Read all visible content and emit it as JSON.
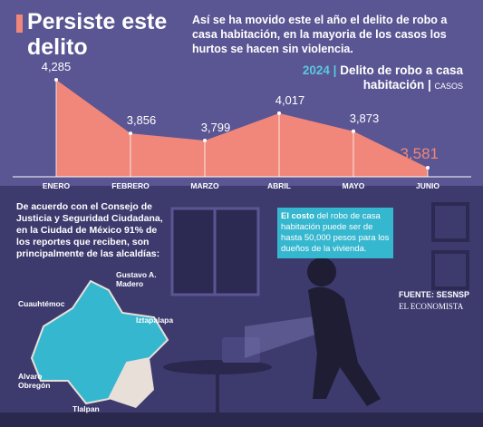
{
  "header": {
    "title": "Persiste este delito",
    "intro": "Así se ha movido este el año el delito de robo a casa habitación, en la mayoria de los casos los hurtos se hacen sin violencia."
  },
  "chart_data": {
    "type": "area",
    "title_year": "2024",
    "title": "Delito de robo a casa habitación",
    "title_unit": "CASOS",
    "categories": [
      "ENERO",
      "FEBRERO",
      "MARZO",
      "ABRIL",
      "MAYO",
      "JUNIO"
    ],
    "values": [
      4285,
      3856,
      3799,
      4017,
      3873,
      3581
    ],
    "value_labels": [
      "4,285",
      "3,856",
      "3,799",
      "4,017",
      "3,873",
      "3,581"
    ],
    "color": "#f0877a"
  },
  "context": {
    "text": "De acuerdo con el Consejo de Justicia y Seguridad Ciudadana, en la Ciudad de México 91% de los reportes que reciben, son principalmente de las alcaldías:",
    "alcaldias": [
      "Gustavo A. Madero",
      "Cuauhtémoc",
      "Iztapalapa",
      "Alvaro Obregón",
      "Tlalpan"
    ]
  },
  "note": {
    "bold": "El costo",
    "text": "del robo de casa habitación puede ser de hasta 50,000 pesos para los dueños de la vivienda."
  },
  "source": {
    "label": "FUENTE: SESNSP",
    "brand": "EL ECONOMISTA"
  }
}
